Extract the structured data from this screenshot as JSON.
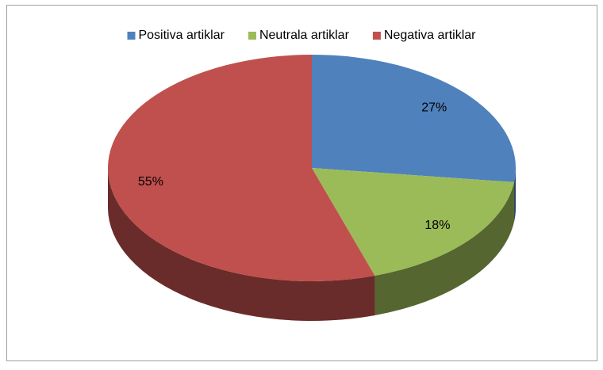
{
  "chart_data": {
    "type": "pie",
    "categories": [
      "Positiva artiklar",
      "Neutrala artiklar",
      "Negativa artiklar"
    ],
    "values": [
      27,
      18,
      55
    ],
    "value_labels": [
      "27%",
      "18%",
      "55%"
    ],
    "colors": [
      "#4f81bd",
      "#9bbb59",
      "#c0504d"
    ],
    "legend": "top"
  }
}
